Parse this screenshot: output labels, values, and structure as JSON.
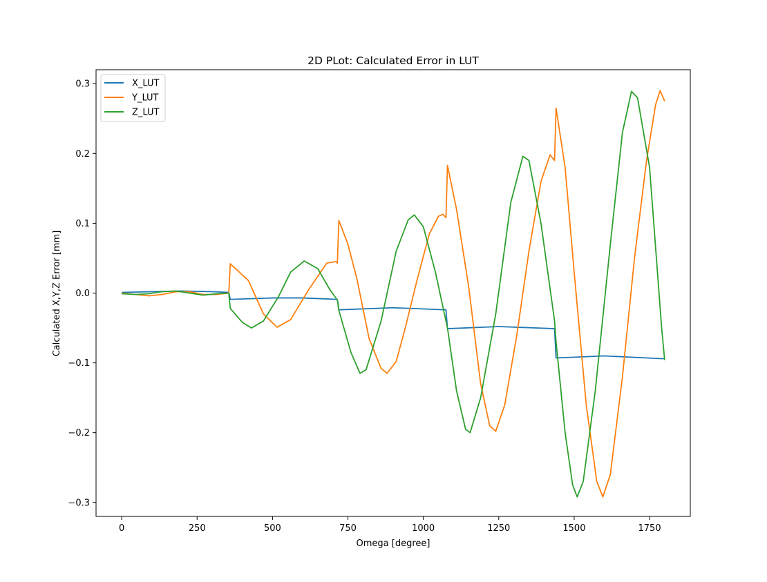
{
  "chart_data": {
    "type": "line",
    "title": "2D PLot: Calculated Error in LUT",
    "xlabel": "Omega [degree]",
    "ylabel": "Calculated X,Y,Z Error [mm]",
    "xlim": [
      -85,
      1885
    ],
    "ylim": [
      -0.32,
      0.32
    ],
    "xticks": [
      0,
      250,
      500,
      750,
      1000,
      1250,
      1500,
      1750
    ],
    "yticks": [
      -0.3,
      -0.2,
      -0.1,
      0.0,
      0.1,
      0.2,
      0.3
    ],
    "ytick_labels": [
      "−0.3",
      "−0.2",
      "−0.1",
      "0.0",
      "0.1",
      "0.2",
      "0.3"
    ],
    "grid": false,
    "legend_position": "upper-left",
    "series": [
      {
        "name": "X_LUT",
        "color": "#1f77b4",
        "points": [
          [
            0,
            0.001
          ],
          [
            100,
            0.002
          ],
          [
            200,
            0.003
          ],
          [
            300,
            0.002
          ],
          [
            355,
            0.001
          ],
          [
            360,
            -0.009
          ],
          [
            500,
            -0.007
          ],
          [
            600,
            -0.007
          ],
          [
            715,
            -0.009
          ],
          [
            720,
            -0.024
          ],
          [
            900,
            -0.021
          ],
          [
            1075,
            -0.024
          ],
          [
            1080,
            -0.051
          ],
          [
            1250,
            -0.048
          ],
          [
            1435,
            -0.051
          ],
          [
            1440,
            -0.093
          ],
          [
            1600,
            -0.09
          ],
          [
            1790,
            -0.094
          ],
          [
            1800,
            -0.094
          ]
        ]
      },
      {
        "name": "Y_LUT",
        "color": "#ff7f0e",
        "points": [
          [
            0,
            0.0
          ],
          [
            45,
            -0.002
          ],
          [
            90,
            -0.004
          ],
          [
            135,
            -0.002
          ],
          [
            180,
            0.002
          ],
          [
            225,
            0.002
          ],
          [
            270,
            -0.002
          ],
          [
            315,
            -0.002
          ],
          [
            355,
            0.0
          ],
          [
            360,
            0.042
          ],
          [
            420,
            0.018
          ],
          [
            470,
            -0.03
          ],
          [
            515,
            -0.049
          ],
          [
            560,
            -0.038
          ],
          [
            620,
            0.005
          ],
          [
            680,
            0.043
          ],
          [
            710,
            0.045
          ],
          [
            715,
            0.043
          ],
          [
            720,
            0.104
          ],
          [
            750,
            0.07
          ],
          [
            780,
            0.02
          ],
          [
            820,
            -0.065
          ],
          [
            860,
            -0.108
          ],
          [
            880,
            -0.115
          ],
          [
            910,
            -0.098
          ],
          [
            940,
            -0.05
          ],
          [
            980,
            0.02
          ],
          [
            1020,
            0.085
          ],
          [
            1050,
            0.11
          ],
          [
            1065,
            0.113
          ],
          [
            1075,
            0.108
          ],
          [
            1080,
            0.183
          ],
          [
            1110,
            0.12
          ],
          [
            1150,
            0.01
          ],
          [
            1190,
            -0.13
          ],
          [
            1220,
            -0.19
          ],
          [
            1240,
            -0.198
          ],
          [
            1270,
            -0.16
          ],
          [
            1310,
            -0.06
          ],
          [
            1350,
            0.06
          ],
          [
            1390,
            0.16
          ],
          [
            1420,
            0.198
          ],
          [
            1435,
            0.19
          ],
          [
            1440,
            0.265
          ],
          [
            1470,
            0.18
          ],
          [
            1500,
            0.03
          ],
          [
            1540,
            -0.16
          ],
          [
            1575,
            -0.27
          ],
          [
            1595,
            -0.292
          ],
          [
            1620,
            -0.26
          ],
          [
            1660,
            -0.12
          ],
          [
            1700,
            0.05
          ],
          [
            1740,
            0.19
          ],
          [
            1770,
            0.27
          ],
          [
            1785,
            0.29
          ],
          [
            1800,
            0.275
          ]
        ]
      },
      {
        "name": "Z_LUT",
        "color": "#2ca02c",
        "points": [
          [
            0,
            -0.001
          ],
          [
            45,
            -0.002
          ],
          [
            90,
            -0.001
          ],
          [
            135,
            0.002
          ],
          [
            180,
            0.003
          ],
          [
            225,
            0.0
          ],
          [
            270,
            -0.003
          ],
          [
            315,
            -0.001
          ],
          [
            355,
            0.0
          ],
          [
            360,
            -0.022
          ],
          [
            400,
            -0.042
          ],
          [
            430,
            -0.05
          ],
          [
            470,
            -0.04
          ],
          [
            520,
            -0.005
          ],
          [
            560,
            0.03
          ],
          [
            605,
            0.046
          ],
          [
            650,
            0.035
          ],
          [
            690,
            0.005
          ],
          [
            715,
            -0.01
          ],
          [
            720,
            -0.025
          ],
          [
            760,
            -0.085
          ],
          [
            790,
            -0.115
          ],
          [
            810,
            -0.11
          ],
          [
            860,
            -0.04
          ],
          [
            910,
            0.06
          ],
          [
            950,
            0.105
          ],
          [
            970,
            0.112
          ],
          [
            1000,
            0.095
          ],
          [
            1040,
            0.03
          ],
          [
            1075,
            -0.04
          ],
          [
            1080,
            -0.05
          ],
          [
            1110,
            -0.14
          ],
          [
            1140,
            -0.195
          ],
          [
            1155,
            -0.2
          ],
          [
            1190,
            -0.15
          ],
          [
            1240,
            -0.03
          ],
          [
            1290,
            0.13
          ],
          [
            1330,
            0.196
          ],
          [
            1350,
            0.19
          ],
          [
            1390,
            0.1
          ],
          [
            1435,
            -0.04
          ],
          [
            1440,
            -0.07
          ],
          [
            1470,
            -0.2
          ],
          [
            1495,
            -0.275
          ],
          [
            1510,
            -0.292
          ],
          [
            1530,
            -0.27
          ],
          [
            1570,
            -0.14
          ],
          [
            1620,
            0.07
          ],
          [
            1660,
            0.23
          ],
          [
            1690,
            0.289
          ],
          [
            1710,
            0.28
          ],
          [
            1750,
            0.18
          ],
          [
            1790,
            -0.05
          ],
          [
            1800,
            -0.096
          ]
        ]
      }
    ]
  }
}
